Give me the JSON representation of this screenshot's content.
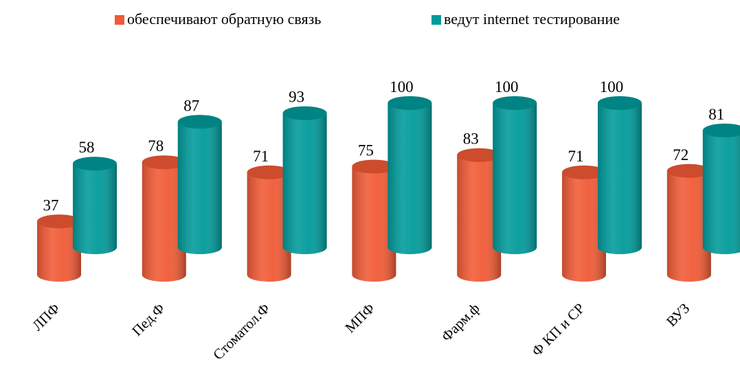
{
  "chart_data": {
    "type": "bar3d-cylinder",
    "categories": [
      "ЛПФ",
      "Пед.Ф",
      "Стоматол.Ф",
      "МПФ",
      "Фарм.ф",
      "Ф КП и СР",
      "ВУЗ"
    ],
    "series": [
      {
        "name": "обеспечивают обратную связь",
        "color": "#f05a35",
        "values": [
          37,
          78,
          71,
          75,
          83,
          71,
          72
        ]
      },
      {
        "name": "ведут internet тестирование",
        "color": "#009a9a",
        "values": [
          58,
          87,
          93,
          100,
          100,
          100,
          81
        ]
      }
    ],
    "legend": "top"
  }
}
